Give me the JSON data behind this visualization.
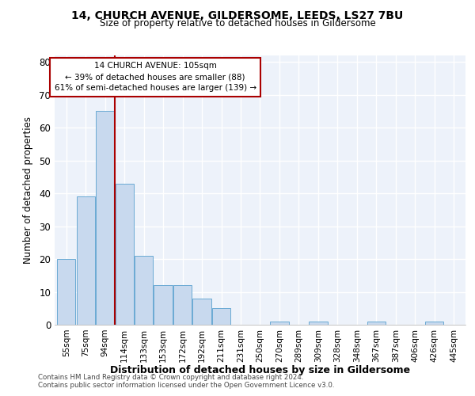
{
  "title1": "14, CHURCH AVENUE, GILDERSOME, LEEDS, LS27 7BU",
  "title2": "Size of property relative to detached houses in Gildersome",
  "xlabel": "Distribution of detached houses by size in Gildersome",
  "ylabel": "Number of detached properties",
  "categories": [
    "55sqm",
    "75sqm",
    "94sqm",
    "114sqm",
    "133sqm",
    "153sqm",
    "172sqm",
    "192sqm",
    "211sqm",
    "231sqm",
    "250sqm",
    "270sqm",
    "289sqm",
    "309sqm",
    "328sqm",
    "348sqm",
    "367sqm",
    "387sqm",
    "406sqm",
    "426sqm",
    "445sqm"
  ],
  "values": [
    20,
    39,
    65,
    43,
    21,
    12,
    12,
    8,
    5,
    0,
    0,
    1,
    0,
    1,
    0,
    0,
    1,
    0,
    0,
    1,
    0
  ],
  "bar_color": "#c8d9ee",
  "bar_edge_color": "#6aaad4",
  "vline_x": 2.5,
  "vline_color": "#aa0000",
  "annotation_text": "14 CHURCH AVENUE: 105sqm\n← 39% of detached houses are smaller (88)\n61% of semi-detached houses are larger (139) →",
  "annotation_box_color": "#ffffff",
  "annotation_box_edge": "#aa0000",
  "ylim": [
    0,
    82
  ],
  "yticks": [
    0,
    10,
    20,
    30,
    40,
    50,
    60,
    70,
    80
  ],
  "background_color": "#edf2fa",
  "grid_color": "#ffffff",
  "footer1": "Contains HM Land Registry data © Crown copyright and database right 2024.",
  "footer2": "Contains public sector information licensed under the Open Government Licence v3.0."
}
